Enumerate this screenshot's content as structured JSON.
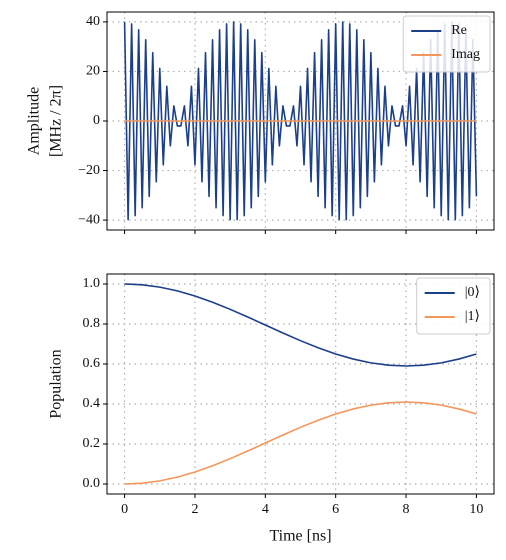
{
  "chart_data": [
    {
      "type": "line",
      "ylabel": [
        "Amplitude",
        "[MHz / 2π]"
      ],
      "x": [
        0,
        0.1,
        0.2,
        0.3,
        0.4,
        0.5,
        0.6,
        0.7,
        0.8,
        0.9,
        1,
        1.1,
        1.2,
        1.3,
        1.4,
        1.5,
        1.6,
        1.7,
        1.8,
        1.9,
        2,
        2.1,
        2.2,
        2.3,
        2.4,
        2.5,
        2.6,
        2.7,
        2.8,
        2.9,
        3,
        3.1,
        3.2,
        3.3,
        3.4,
        3.5,
        3.6,
        3.7,
        3.8,
        3.9,
        4,
        4.1,
        4.2,
        4.3,
        4.4,
        4.5,
        4.6,
        4.7,
        4.8,
        4.9,
        5,
        5.1,
        5.2,
        5.3,
        5.4,
        5.5,
        5.6,
        5.7,
        5.8,
        5.9,
        6,
        6.1,
        6.2,
        6.3,
        6.4,
        6.5,
        6.6,
        6.7,
        6.8,
        6.9,
        7,
        7.1,
        7.2,
        7.3,
        7.4,
        7.5,
        7.6,
        7.7,
        7.8,
        7.9,
        8,
        8.1,
        8.2,
        8.3,
        8.4,
        8.5,
        8.6,
        8.7,
        8.8,
        8.9,
        9,
        9.1,
        9.2,
        9.3,
        9.4,
        9.5,
        9.6,
        9.7,
        9.8,
        9.9,
        10
      ],
      "series": [
        {
          "name": "Re",
          "color": "#1c3f8c",
          "values": [
            40,
            -39.8,
            39.2,
            -38.2,
            36.8,
            -35,
            32.8,
            -30.4,
            27.6,
            -24.5,
            21.2,
            -17.7,
            14,
            -10,
            6.1,
            -2,
            -2,
            6.1,
            -10,
            14,
            -17.7,
            21.2,
            -24.5,
            27.6,
            -30.4,
            32.8,
            -35,
            36.8,
            -38.2,
            39.2,
            -39.8,
            40,
            -39.8,
            39.2,
            -38.2,
            36.8,
            -35,
            32.8,
            -30.4,
            27.6,
            -24.5,
            21.2,
            -17.7,
            14,
            -10,
            6.1,
            -2,
            -2,
            6.1,
            -10,
            14,
            -17.7,
            21.2,
            -24.5,
            27.6,
            -30.4,
            32.8,
            -35,
            36.8,
            -38.2,
            39.2,
            -39.8,
            40,
            -39.8,
            39.2,
            -38.2,
            36.8,
            -35,
            32.8,
            -30.4,
            27.6,
            -24.5,
            21.2,
            -17.7,
            14,
            -10,
            6.1,
            -2,
            -2,
            6.1,
            -10,
            14,
            -17.7,
            21.2,
            -24.5,
            27.6,
            -30.4,
            32.8,
            -35,
            36.8,
            -38.2,
            39.2,
            -39.8,
            40,
            -39.8,
            39.2,
            -38.2,
            36.8,
            -35,
            32.8,
            -30.4
          ]
        },
        {
          "name": "Imag",
          "color": "#f4975a",
          "values": [
            0,
            0,
            0,
            0,
            0,
            0,
            0,
            0,
            0,
            0,
            0,
            0,
            0,
            0,
            0,
            0,
            0,
            0,
            0,
            0,
            0,
            0,
            0,
            0,
            0,
            0,
            0,
            0,
            0,
            0,
            0,
            0,
            0,
            0,
            0,
            0,
            0,
            0,
            0,
            0,
            0,
            0,
            0,
            0,
            0,
            0,
            0,
            0,
            0,
            0,
            0,
            0,
            0,
            0,
            0,
            0,
            0,
            0,
            0,
            0,
            0,
            0,
            0,
            0,
            0,
            0,
            0,
            0,
            0,
            0,
            0,
            0,
            0,
            0,
            0,
            0,
            0,
            0,
            0,
            0,
            0,
            0,
            0,
            0,
            0,
            0,
            0,
            0,
            0,
            0,
            0,
            0,
            0,
            0,
            0,
            0,
            0,
            0,
            0,
            0,
            0
          ]
        }
      ],
      "xlim": [
        -0.5,
        10.5
      ],
      "xticks": [
        0,
        2,
        4,
        6,
        8,
        10
      ],
      "ylim": [
        -44,
        44
      ],
      "yticks": [
        {
          "value": -40,
          "label": "−40"
        },
        {
          "value": -20,
          "label": "−20"
        },
        0,
        20,
        40
      ],
      "grid": true,
      "legend": "upper right"
    },
    {
      "type": "line",
      "xlabel": "Time [ns]",
      "ylabel": [
        "Population"
      ],
      "x": [
        0,
        0.5,
        1,
        1.5,
        2,
        2.5,
        3,
        3.5,
        4,
        4.5,
        5,
        5.5,
        6,
        6.5,
        7,
        7.5,
        8,
        8.5,
        9,
        9.5,
        10
      ],
      "series": [
        {
          "name": "|0⟩",
          "color": "#1c3f8c",
          "values": [
            1,
            0.9961,
            0.9844,
            0.9655,
            0.94,
            0.9089,
            0.8734,
            0.835,
            0.795,
            0.755,
            0.7166,
            0.6811,
            0.65,
            0.6246,
            0.6056,
            0.5939,
            0.59,
            0.5939,
            0.6056,
            0.6246,
            0.65
          ]
        },
        {
          "name": "|1⟩",
          "color": "#f4975a",
          "values": [
            0,
            0.0039,
            0.0156,
            0.0345,
            0.06,
            0.0911,
            0.1266,
            0.165,
            0.205,
            0.245,
            0.2834,
            0.3189,
            0.35,
            0.3754,
            0.3944,
            0.4061,
            0.41,
            0.4061,
            0.3944,
            0.3754,
            0.35
          ]
        }
      ],
      "xlim": [
        -0.5,
        10.5
      ],
      "xticks": [
        0,
        2,
        4,
        6,
        8,
        10
      ],
      "ylim": [
        -0.05,
        1.05
      ],
      "yticks": [
        {
          "value": 0,
          "label": "0.0"
        },
        0.2,
        0.4,
        0.6,
        0.8,
        {
          "value": 1,
          "label": "1.0"
        }
      ],
      "grid": true,
      "legend": "upper right"
    }
  ]
}
